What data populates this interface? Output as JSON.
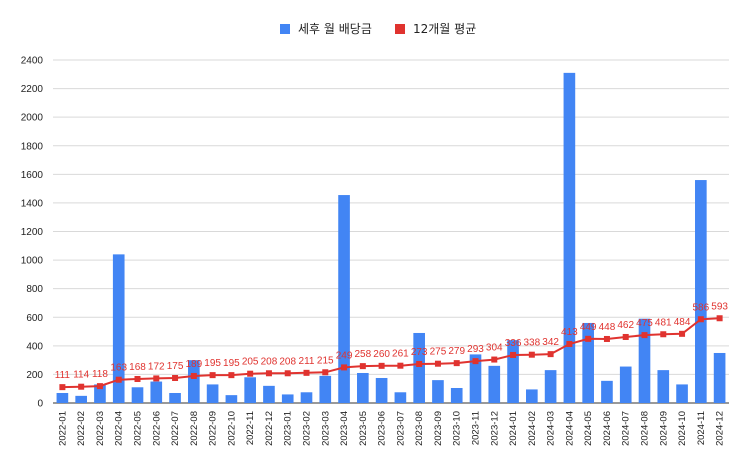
{
  "chart_data": {
    "type": "bar",
    "title": "",
    "xlabel": "",
    "ylabel": "",
    "ylim": [
      0,
      2400
    ],
    "yticks": [
      0,
      200,
      400,
      600,
      800,
      1000,
      1200,
      1400,
      1600,
      1800,
      2000,
      2200,
      2400
    ],
    "grid": true,
    "legend_position": "top-center",
    "categories": [
      "2022-01",
      "2022-02",
      "2022-03",
      "2022-04",
      "2022-05",
      "2022-06",
      "2022-07",
      "2022-08",
      "2022-09",
      "2022-10",
      "2022-11",
      "2022-12",
      "2023-01",
      "2023-02",
      "2023-03",
      "2023-04",
      "2023-05",
      "2023-06",
      "2023-07",
      "2023-08",
      "2023-09",
      "2023-10",
      "2023-11",
      "2023-12",
      "2024-01",
      "2024-02",
      "2024-03",
      "2024-04",
      "2024-05",
      "2024-06",
      "2024-07",
      "2024-08",
      "2024-09",
      "2024-10",
      "2024-11",
      "2024-12"
    ],
    "series": [
      {
        "name": "세후 월 배당금",
        "kind": "bar",
        "color": "#4285f4",
        "values": [
          70,
          50,
          130,
          1040,
          110,
          150,
          70,
          300,
          130,
          55,
          180,
          120,
          60,
          75,
          190,
          1455,
          210,
          175,
          75,
          490,
          160,
          105,
          340,
          260,
          440,
          95,
          230,
          2310,
          560,
          155,
          255,
          590,
          230,
          130,
          1560,
          350
        ]
      },
      {
        "name": "12개월 평균",
        "kind": "line",
        "color": "#e0332f",
        "values": [
          111,
          114,
          118,
          163,
          168,
          172,
          175,
          189,
          195,
          195,
          205,
          208,
          208,
          211,
          215,
          249,
          258,
          260,
          261,
          273,
          275,
          279,
          293,
          304,
          336,
          338,
          342,
          413,
          449,
          448,
          462,
          475,
          481,
          484,
          586,
          593
        ],
        "labels": [
          "111",
          "114",
          "118",
          "163",
          "168",
          "172",
          "175",
          "189",
          "195",
          "195",
          "205",
          "208",
          "208",
          "211",
          "215",
          "249",
          "258",
          "260",
          "261",
          "273",
          "275",
          "279",
          "293",
          "304",
          "336",
          "338",
          "342",
          "413",
          "449",
          "448",
          "462",
          "475",
          "481",
          "484",
          "586",
          "593"
        ]
      }
    ]
  }
}
